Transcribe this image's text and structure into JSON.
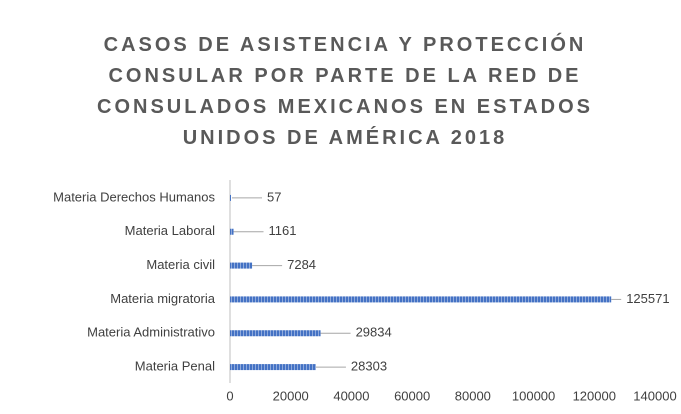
{
  "chart_data": {
    "type": "barh",
    "title": "CASOS DE ASISTENCIA Y PROTECCIÓN CONSULAR POR PARTE DE LA RED DE CONSULADOS MEXICANOS EN ESTADOS UNIDOS DE AMÉRICA 2018",
    "categories": [
      "Materia Derechos Humanos",
      "Materia Laboral",
      "Materia civil",
      "Materia migratoria",
      "Materia Administrativo",
      "Materia Penal"
    ],
    "values": [
      57,
      1161,
      7284,
      125571,
      29834,
      28303
    ],
    "color": "#4472c4",
    "xlim": [
      0,
      140000
    ],
    "xticks": [
      0,
      20000,
      40000,
      60000,
      80000,
      100000,
      120000,
      140000
    ]
  }
}
